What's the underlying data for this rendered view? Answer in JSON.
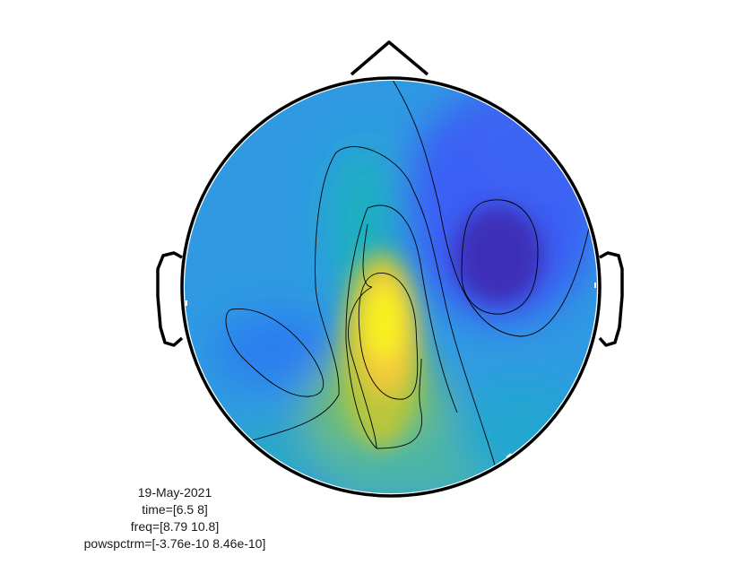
{
  "figure": {
    "type": "topoplot",
    "colormap": "parula",
    "outline_color": "#000000",
    "contour_color": "#000000"
  },
  "caption": {
    "date": "19-May-2021",
    "time": "time=[6.5 8]",
    "freq": "freq=[8.79 10.8]",
    "powspctrm": "powspctrm=[-3.76e-10 8.46e-10]"
  }
}
